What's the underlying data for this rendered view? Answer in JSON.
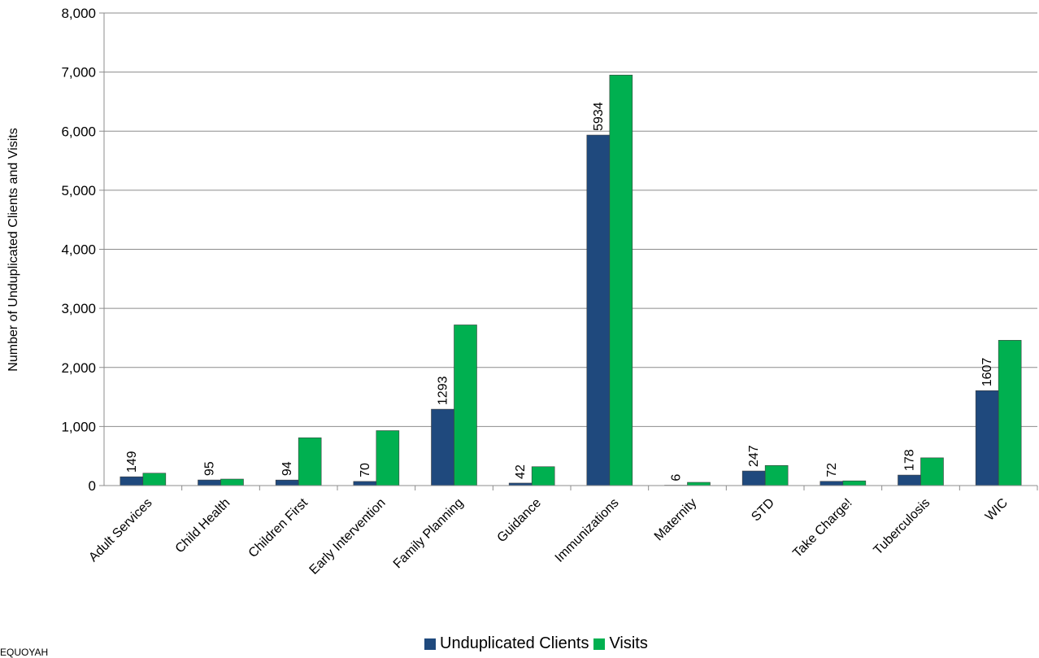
{
  "chart_data": {
    "type": "bar",
    "ylabel": "Number of Unduplicated Clients and Visits",
    "ylim": [
      0,
      8000
    ],
    "yticks": [
      0,
      1000,
      2000,
      3000,
      4000,
      5000,
      6000,
      7000,
      8000
    ],
    "ytick_labels": [
      "0",
      "1,000",
      "2,000",
      "3,000",
      "4,000",
      "5,000",
      "6,000",
      "7,000",
      "8,000"
    ],
    "grid": true,
    "legend_position": "bottom",
    "categories": [
      "Adult Services",
      "Child Health",
      "Children First",
      "Early Intervention",
      "Family Planning",
      "Guidance",
      "Immunizations",
      "Maternity",
      "STD",
      "Take Charge!",
      "Tuberculosis",
      "WIC"
    ],
    "series": [
      {
        "name": "Unduplicated Clients",
        "color": "#1f497d",
        "values": [
          149,
          95,
          94,
          70,
          1293,
          42,
          5934,
          6,
          247,
          72,
          178,
          1607
        ],
        "show_labels": true
      },
      {
        "name": "Visits",
        "color": "#00b050",
        "values": [
          210,
          110,
          810,
          930,
          2720,
          320,
          6950,
          55,
          340,
          80,
          470,
          2460
        ],
        "show_labels": false
      }
    ]
  },
  "footer": {
    "text": "EQUOYAH"
  }
}
